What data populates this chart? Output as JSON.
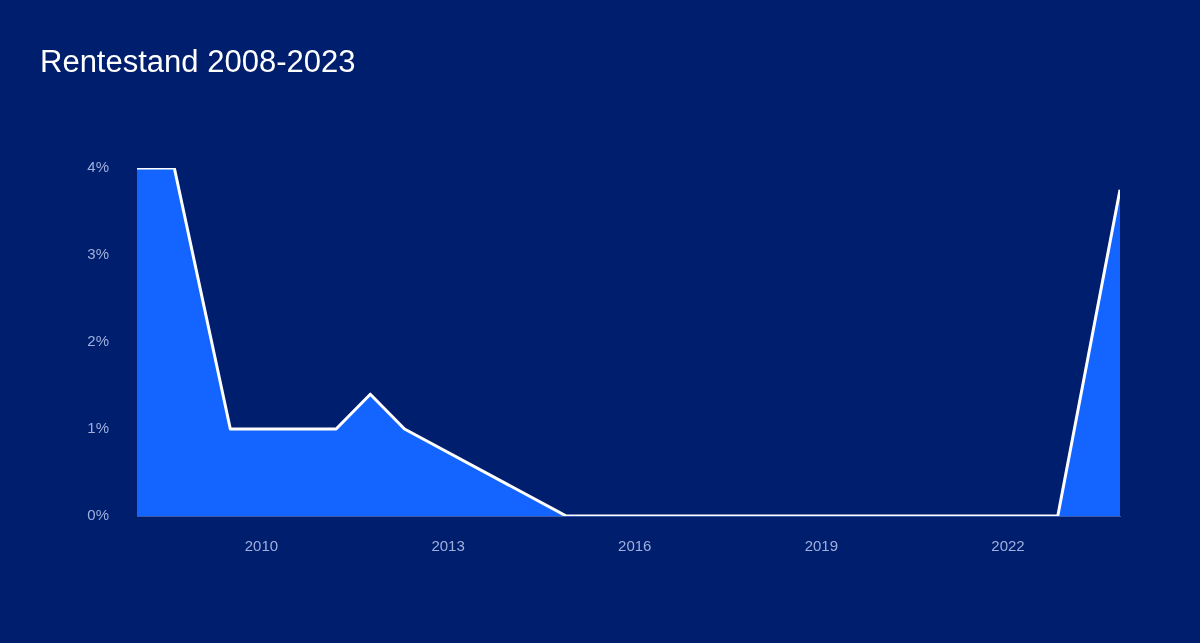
{
  "chart_data": {
    "type": "area",
    "title": "Rentestand 2008-2023",
    "x": [
      2008.0,
      2008.6,
      2009.5,
      2011.2,
      2011.75,
      2012.3,
      2014.9,
      2022.8,
      2023.8
    ],
    "series": [
      {
        "color": "#1464ff",
        "values": [
          4,
          4,
          1,
          1,
          1.4,
          1,
          0,
          0,
          3.75
        ]
      }
    ],
    "xlim": [
      2008,
      2023.8
    ],
    "xticks": [
      2010,
      2013,
      2016,
      2019,
      2022
    ],
    "ylim": [
      0,
      4
    ],
    "yticks": [
      {
        "value": 0,
        "label": "0%"
      },
      {
        "value": 1,
        "label": "1%"
      },
      {
        "value": 2,
        "label": "2%"
      },
      {
        "value": 3,
        "label": "3%"
      },
      {
        "value": 4,
        "label": "4%"
      }
    ],
    "grid": false,
    "legend": false,
    "marker": "none",
    "line_style": "solid"
  }
}
